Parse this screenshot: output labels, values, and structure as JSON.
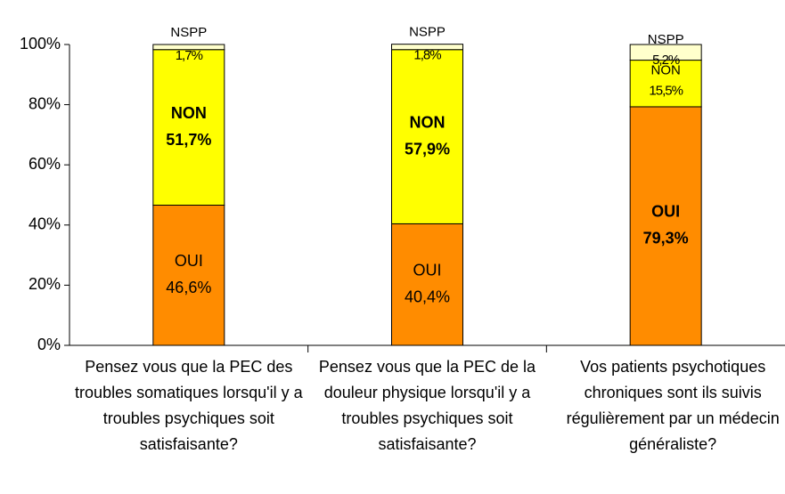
{
  "chart_data": {
    "type": "stacked_bar",
    "categories": [
      "Pensez vous que la PEC des troubles somatiques lorsqu'il y a troubles psychiques soit satisfaisante?",
      "Pensez vous que la PEC de la douleur physique lorsqu'il y a troubles psychiques soit satisfaisante?",
      "Vos patients psychotiques chroniques sont ils suivis régulièrement par un médecin généraliste?"
    ],
    "series": [
      {
        "name": "OUI",
        "color": "#ff8c00",
        "values": [
          46.6,
          40.4,
          79.3
        ],
        "value_labels": [
          "46,6%",
          "40,4%",
          "79,3%"
        ]
      },
      {
        "name": "NON",
        "color": "#ffff00",
        "values": [
          51.7,
          57.9,
          15.5
        ],
        "value_labels": [
          "51,7%",
          "57,9%",
          "15,5%"
        ]
      },
      {
        "name": "NSPP",
        "color": "#ffffcc",
        "values": [
          1.7,
          1.8,
          5.2
        ],
        "value_labels": [
          "1,7%",
          "1,8%",
          "5,2%"
        ]
      }
    ],
    "ylim": [
      0,
      100
    ],
    "yticks": [
      {
        "value": 0,
        "label": "0%"
      },
      {
        "value": 20,
        "label": "20%"
      },
      {
        "value": 40,
        "label": "40%"
      },
      {
        "value": 60,
        "label": "60%"
      },
      {
        "value": 80,
        "label": "80%"
      },
      {
        "value": 100,
        "label": "100%"
      }
    ]
  }
}
